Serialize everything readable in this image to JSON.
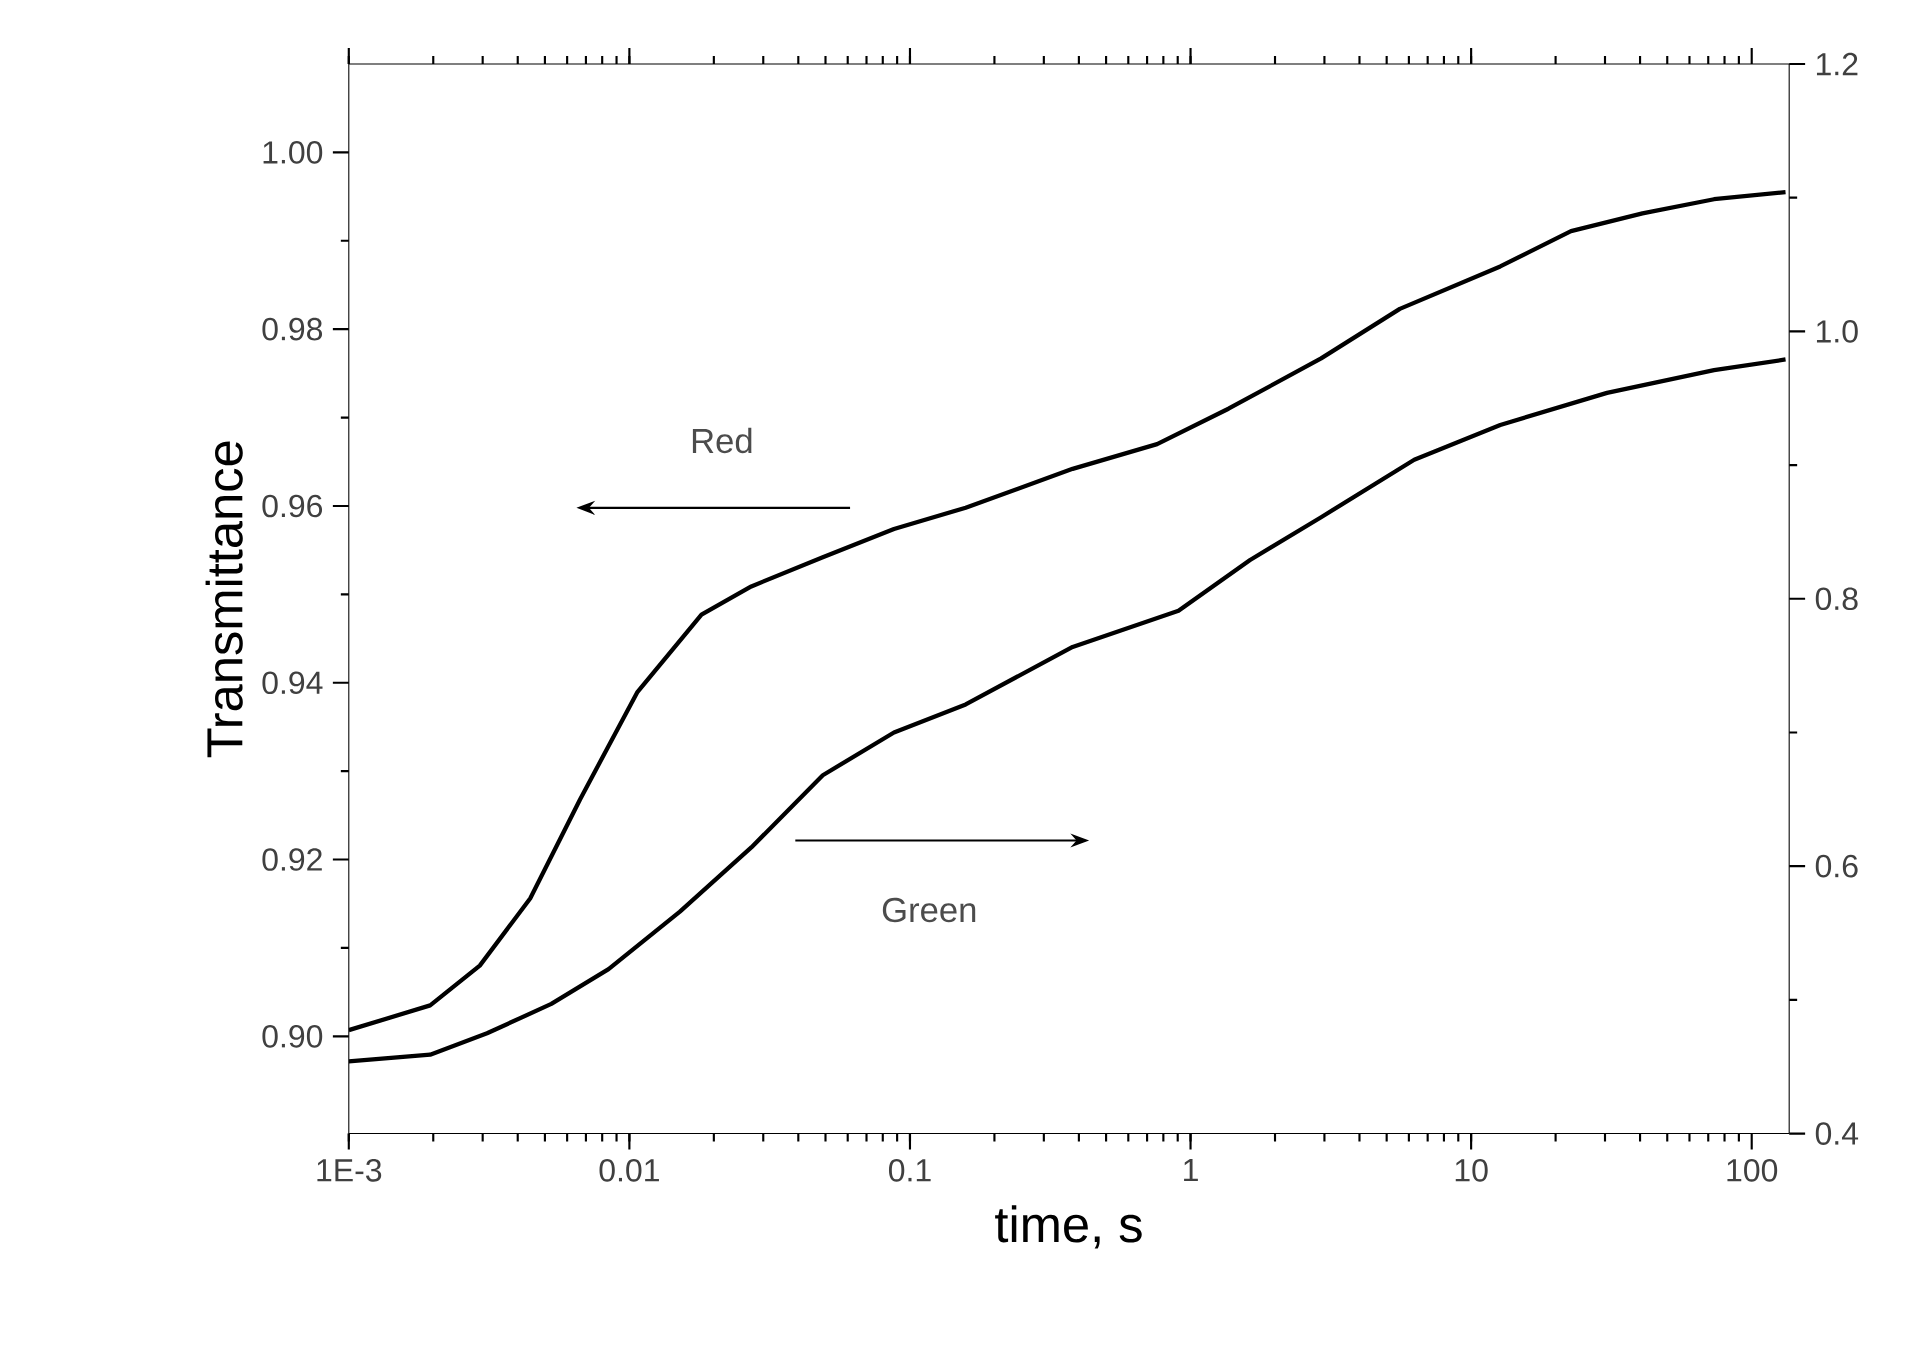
{
  "chart_data": {
    "type": "line",
    "xlabel": "time, s",
    "ylabel": "Transmittance",
    "log": "x",
    "xlim": [
      0.001,
      136
    ],
    "ylim": [
      0.889,
      1.01
    ],
    "y2lim": [
      0.4,
      1.2
    ],
    "xticks": [
      {
        "value": 0.001,
        "label": "1E-3"
      },
      {
        "value": 0.01,
        "label": "0.01"
      },
      {
        "value": 0.1,
        "label": "0.1"
      },
      {
        "value": 1,
        "label": "1"
      },
      {
        "value": 10,
        "label": "10"
      },
      {
        "value": 100,
        "label": "100"
      }
    ],
    "yticks": [
      {
        "value": 0.9,
        "label": "0.90"
      },
      {
        "value": 0.92,
        "label": "0.92"
      },
      {
        "value": 0.94,
        "label": "0.94"
      },
      {
        "value": 0.96,
        "label": "0.96"
      },
      {
        "value": 0.98,
        "label": "0.98"
      },
      {
        "value": 1.0,
        "label": "1.00"
      }
    ],
    "y2ticks": [
      {
        "value": 0.4,
        "label": "0.4"
      },
      {
        "value": 0.6,
        "label": "0.6"
      },
      {
        "value": 0.8,
        "label": "0.8"
      },
      {
        "value": 1.0,
        "label": "1.0"
      },
      {
        "value": 1.2,
        "label": "1.2"
      }
    ],
    "marker": "none",
    "line_style": "solid",
    "annotations": [
      "Red",
      "Green"
    ],
    "series": [
      {
        "color": "#000000",
        "x": [
          0.001,
          0.00195,
          0.00293,
          0.00443,
          0.00667,
          0.01066,
          0.01807,
          0.0272,
          0.0489,
          0.0877,
          0.158,
          0.38,
          0.76,
          1.365,
          2.92,
          5.57,
          12.7,
          22.7,
          40.8,
          73.4,
          132
        ],
        "values": [
          0.9007,
          0.9035,
          0.908,
          0.9156,
          0.9268,
          0.9389,
          0.9477,
          0.9509,
          0.9542,
          0.9574,
          0.9598,
          0.9642,
          0.967,
          0.971,
          0.9767,
          0.9823,
          0.9871,
          0.9911,
          0.9931,
          0.9947,
          0.9955
        ]
      },
      {
        "color": "#000000",
        "axis": "y2",
        "x": [
          0.001,
          0.00195,
          0.00311,
          0.00527,
          0.00843,
          0.01514,
          0.0272,
          0.0489,
          0.0877,
          0.158,
          0.38,
          0.906,
          1.63,
          2.92,
          6.27,
          12.7,
          30.5,
          73.4,
          132
        ],
        "values": [
          0.454,
          0.459,
          0.475,
          0.497,
          0.523,
          0.566,
          0.614,
          0.668,
          0.7,
          0.721,
          0.764,
          0.791,
          0.829,
          0.861,
          0.904,
          0.93,
          0.954,
          0.971,
          0.979
        ]
      }
    ]
  }
}
